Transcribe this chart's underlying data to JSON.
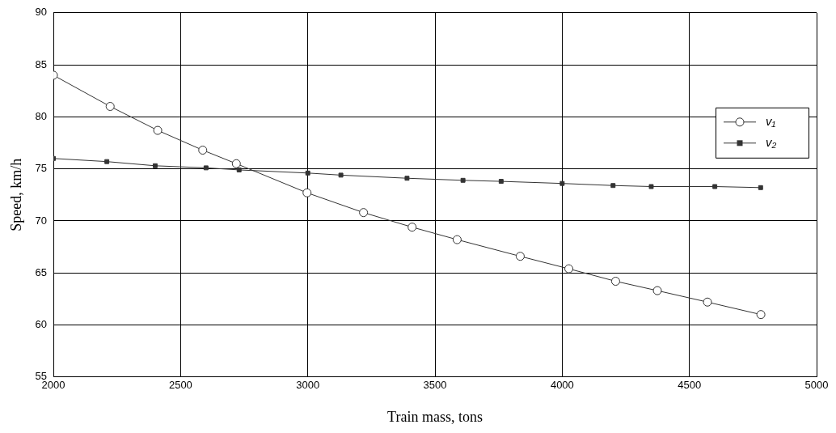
{
  "chart_data": {
    "type": "line",
    "xlabel": "Train mass, tons",
    "ylabel": "Speed, km/h",
    "xlim": [
      2000,
      5000
    ],
    "xticks": [
      2000,
      2500,
      3000,
      3500,
      4000,
      4500,
      5000
    ],
    "ylim": [
      55,
      90
    ],
    "yticks": [
      55,
      60,
      65,
      70,
      75,
      80,
      85,
      90
    ],
    "grid": true,
    "legend": "top right",
    "series": [
      {
        "name": "v₁",
        "color": "#333333",
        "marker": "circle",
        "x": [
          2000,
          2223,
          2410,
          2587,
          2719,
          2997,
          3219,
          3410,
          3587,
          3835,
          4026,
          4210,
          4374,
          4571,
          4781
        ],
        "values": [
          84.0,
          81.0,
          78.7,
          76.8,
          75.5,
          72.7,
          70.8,
          69.4,
          68.2,
          66.6,
          65.4,
          64.2,
          63.3,
          62.2,
          61.0
        ]
      },
      {
        "name": "v₂",
        "color": "#333333",
        "marker": "square",
        "x": [
          2000,
          2210,
          2400,
          2600,
          2730,
          3000,
          3130,
          3390,
          3610,
          3760,
          4000,
          4200,
          4350,
          4600,
          4780
        ],
        "values": [
          76.0,
          75.7,
          75.3,
          75.1,
          74.9,
          74.6,
          74.4,
          74.1,
          73.9,
          73.8,
          73.6,
          73.4,
          73.3,
          73.3,
          73.2
        ]
      }
    ]
  }
}
